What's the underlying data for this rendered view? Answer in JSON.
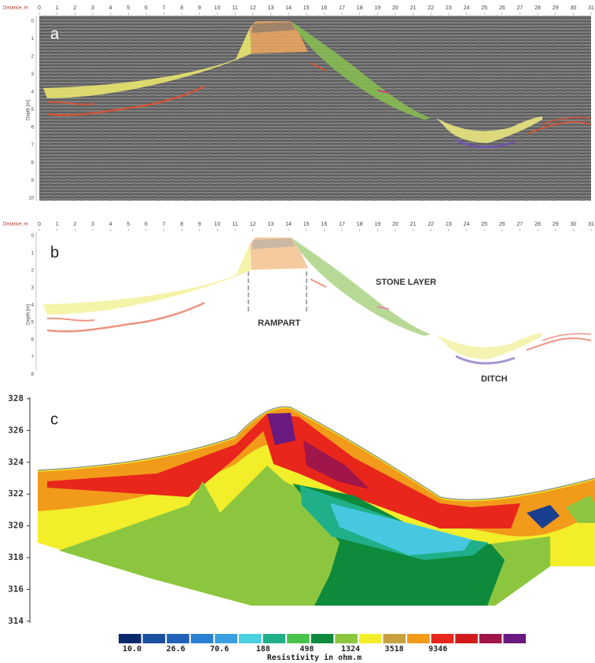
{
  "panel_a": {
    "label": "a",
    "x_axis_title": "Distance, m",
    "y_axis_title": "Depth [m]",
    "x_ticks": [
      0,
      1,
      2,
      3,
      4,
      5,
      6,
      7,
      8,
      9,
      10,
      11,
      12,
      13,
      14,
      15,
      16,
      17,
      18,
      19,
      20,
      21,
      22,
      23,
      24,
      25,
      26,
      27,
      28,
      29,
      30,
      31
    ],
    "y_ticks": [
      0,
      1,
      2,
      3,
      4,
      5,
      6,
      7,
      8,
      9,
      10
    ]
  },
  "panel_b": {
    "label": "b",
    "x_axis_title": "Distance, m",
    "y_axis_title": "Depth [m]",
    "x_ticks": [
      0,
      1,
      2,
      3,
      4,
      5,
      6,
      7,
      8,
      9,
      10,
      11,
      12,
      13,
      14,
      15,
      16,
      17,
      18,
      19,
      20,
      21,
      22,
      23,
      24,
      25,
      26,
      27,
      28,
      29,
      30,
      31
    ],
    "y_ticks": [
      0,
      1,
      2,
      3,
      4,
      5,
      6,
      7,
      8
    ],
    "annotations": [
      "STONE LAYER",
      "RAMPART",
      "DITCH"
    ]
  },
  "panel_c": {
    "label": "c",
    "y_ticks": [
      328,
      326,
      324,
      322,
      320,
      318,
      316,
      314
    ],
    "legend": {
      "labels": [
        "10.0",
        "26.6",
        "70.6",
        "188",
        "498",
        "1324",
        "3518",
        "9346"
      ],
      "title": "Resistivity in ohm.m"
    }
  }
}
